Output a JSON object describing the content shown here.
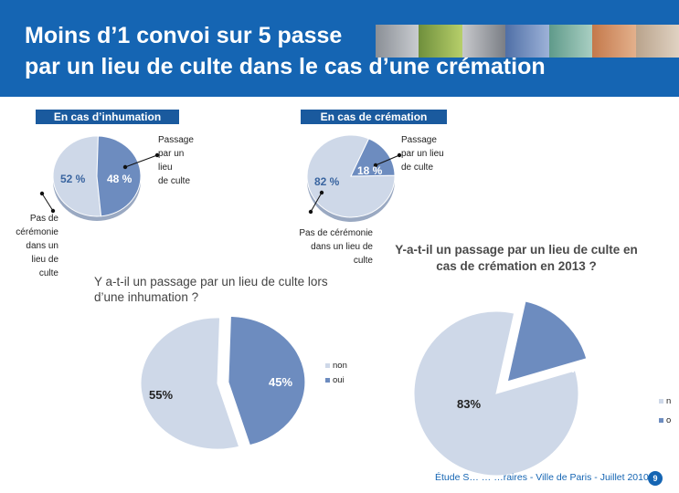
{
  "header": {
    "title_line1": "Moins d’1 convoi sur 5 passe",
    "title_line2": "par un lieu de culte dans le cas d’une crémation"
  },
  "colors": {
    "header_blue": "#1565b3",
    "light_slice": "#ced8e8",
    "dark_slice": "#6d8cbf",
    "label_blue": "#3a65a0"
  },
  "top_left": {
    "tag": "En cas d’inhumation",
    "label_left": "52 %",
    "label_right": "48 %",
    "callout_right": [
      "Passage",
      "par un",
      "lieu",
      "de culte"
    ],
    "callout_left": [
      "Pas de",
      "cérémonie",
      "dans un",
      "lieu de",
      "culte"
    ]
  },
  "top_right": {
    "tag": "En cas de crémation",
    "label_big": "82 %",
    "label_small": "18 %",
    "callout_right": [
      "Passage",
      "par un lieu",
      "de culte"
    ],
    "callout_left": [
      "Pas de cérémonie",
      "dans un lieu de",
      "culte"
    ]
  },
  "bottom_left": {
    "question": [
      "Y a-t-il un passage par un lieu de culte lors",
      "d’une inhumation ?"
    ],
    "label_big": "55%",
    "label_small": "45%",
    "legend": [
      "non",
      "oui"
    ]
  },
  "bottom_right": {
    "question": [
      "Y-a-t-il un passage par un lieu de culte en",
      "cas de crémation en 2013 ?"
    ],
    "label_big": "83%",
    "label_small": "17%",
    "legend": [
      "n",
      "o"
    ]
  },
  "footer": {
    "text": "Étude S… … …raires - Ville de Paris - Juillet 2010",
    "page": "9"
  },
  "chart_data": [
    {
      "type": "pie",
      "title": "En cas d’inhumation",
      "categories": [
        "Pas de cérémonie dans un lieu de culte",
        "Passage par un lieu de culte"
      ],
      "values": [
        52,
        48
      ]
    },
    {
      "type": "pie",
      "title": "En cas de crémation",
      "categories": [
        "Pas de cérémonie dans un lieu de culte",
        "Passage par un lieu de culte"
      ],
      "values": [
        82,
        18
      ]
    },
    {
      "type": "pie",
      "title": "Y a-t-il un passage par un lieu de culte lors d’une inhumation ?",
      "categories": [
        "non",
        "oui"
      ],
      "values": [
        55,
        45
      ]
    },
    {
      "type": "pie",
      "title": "Y-a-t-il un passage par un lieu de culte en cas de crémation en 2013 ?",
      "categories": [
        "n",
        "o"
      ],
      "values": [
        83,
        17
      ]
    }
  ]
}
